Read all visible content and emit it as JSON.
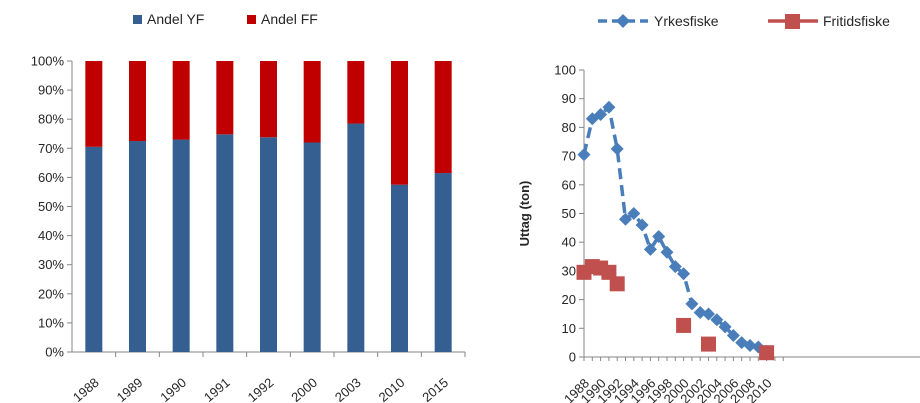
{
  "chart_data": [
    {
      "type": "bar",
      "stacked": true,
      "categories": [
        "1988",
        "1989",
        "1990",
        "1991",
        "1992",
        "2000",
        "2003",
        "2010",
        "2015"
      ],
      "series": [
        {
          "name": "Andel YF",
          "color": "#365f91",
          "values": [
            70.5,
            72.5,
            73,
            74.8,
            73.8,
            72,
            78.5,
            57.5,
            61.5
          ]
        },
        {
          "name": "Andel FF",
          "color": "#c00000",
          "values": [
            29.5,
            27.5,
            27,
            25.2,
            26.2,
            28,
            21.5,
            42.5,
            38.5
          ]
        }
      ],
      "ylim": [
        0,
        100
      ],
      "yticks": [
        "0%",
        "10%",
        "20%",
        "30%",
        "40%",
        "50%",
        "60%",
        "70%",
        "80%",
        "90%",
        "100%"
      ],
      "grid": false,
      "legend": "top"
    },
    {
      "type": "line",
      "ylabel": "Uttag (ton)",
      "ylim": [
        0,
        100
      ],
      "yticks": [
        "0",
        "10",
        "20",
        "30",
        "40",
        "50",
        "60",
        "70",
        "80",
        "90",
        "100"
      ],
      "xticks": [
        "1988",
        "1990",
        "1992",
        "1994",
        "1996",
        "1998",
        "2000",
        "2002",
        "2004",
        "2006",
        "2008",
        "2010"
      ],
      "series": [
        {
          "name": "Yrkesfiske",
          "color": "#4a7ebb",
          "style": "dashed-diamond",
          "x": [
            1988,
            1989,
            1990,
            1991,
            1992,
            1993,
            1994,
            1995,
            1996,
            1997,
            1998,
            1999,
            2000,
            2001,
            2002,
            2003,
            2004,
            2005,
            2006,
            2007,
            2008,
            2009,
            2010
          ],
          "y": [
            70.5,
            83,
            84.5,
            87,
            72.5,
            48,
            50,
            46,
            37.5,
            42,
            36.5,
            31.5,
            29,
            18.5,
            15.5,
            15,
            13,
            10.5,
            7.5,
            5,
            4,
            3.5,
            2
          ]
        },
        {
          "name": "Fritidsfiske",
          "color": "#c0504d",
          "style": "square-markers",
          "x": [
            1988,
            1989,
            1990,
            1991,
            1992,
            2000,
            2003,
            2010
          ],
          "y": [
            29.5,
            31.5,
            31,
            29.5,
            25.5,
            11,
            4.5,
            1.5
          ]
        }
      ],
      "grid": false,
      "legend": "top"
    }
  ]
}
